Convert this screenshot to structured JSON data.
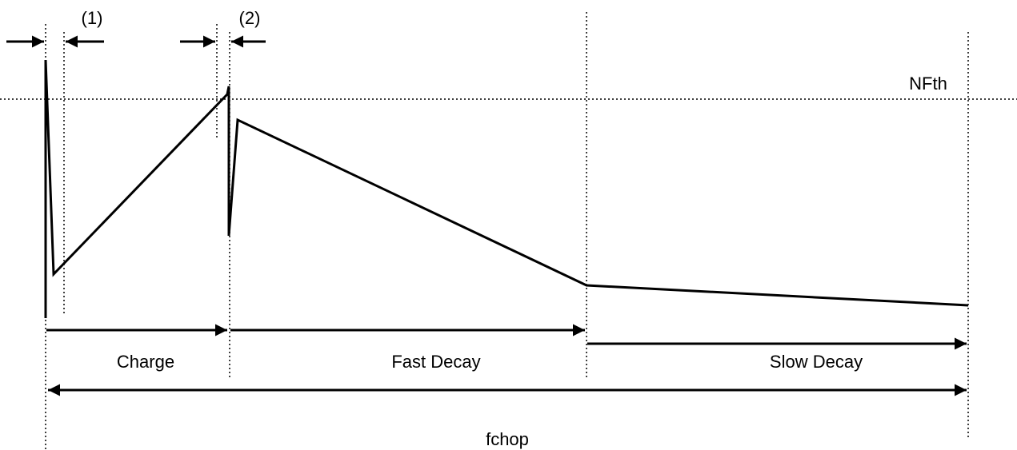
{
  "labels": {
    "marker_1": "(1)",
    "marker_2": "(2)",
    "threshold": "NFth",
    "charge": "Charge",
    "fast_decay": "Fast Decay",
    "slow_decay": "Slow Decay",
    "period": "fchop"
  }
}
